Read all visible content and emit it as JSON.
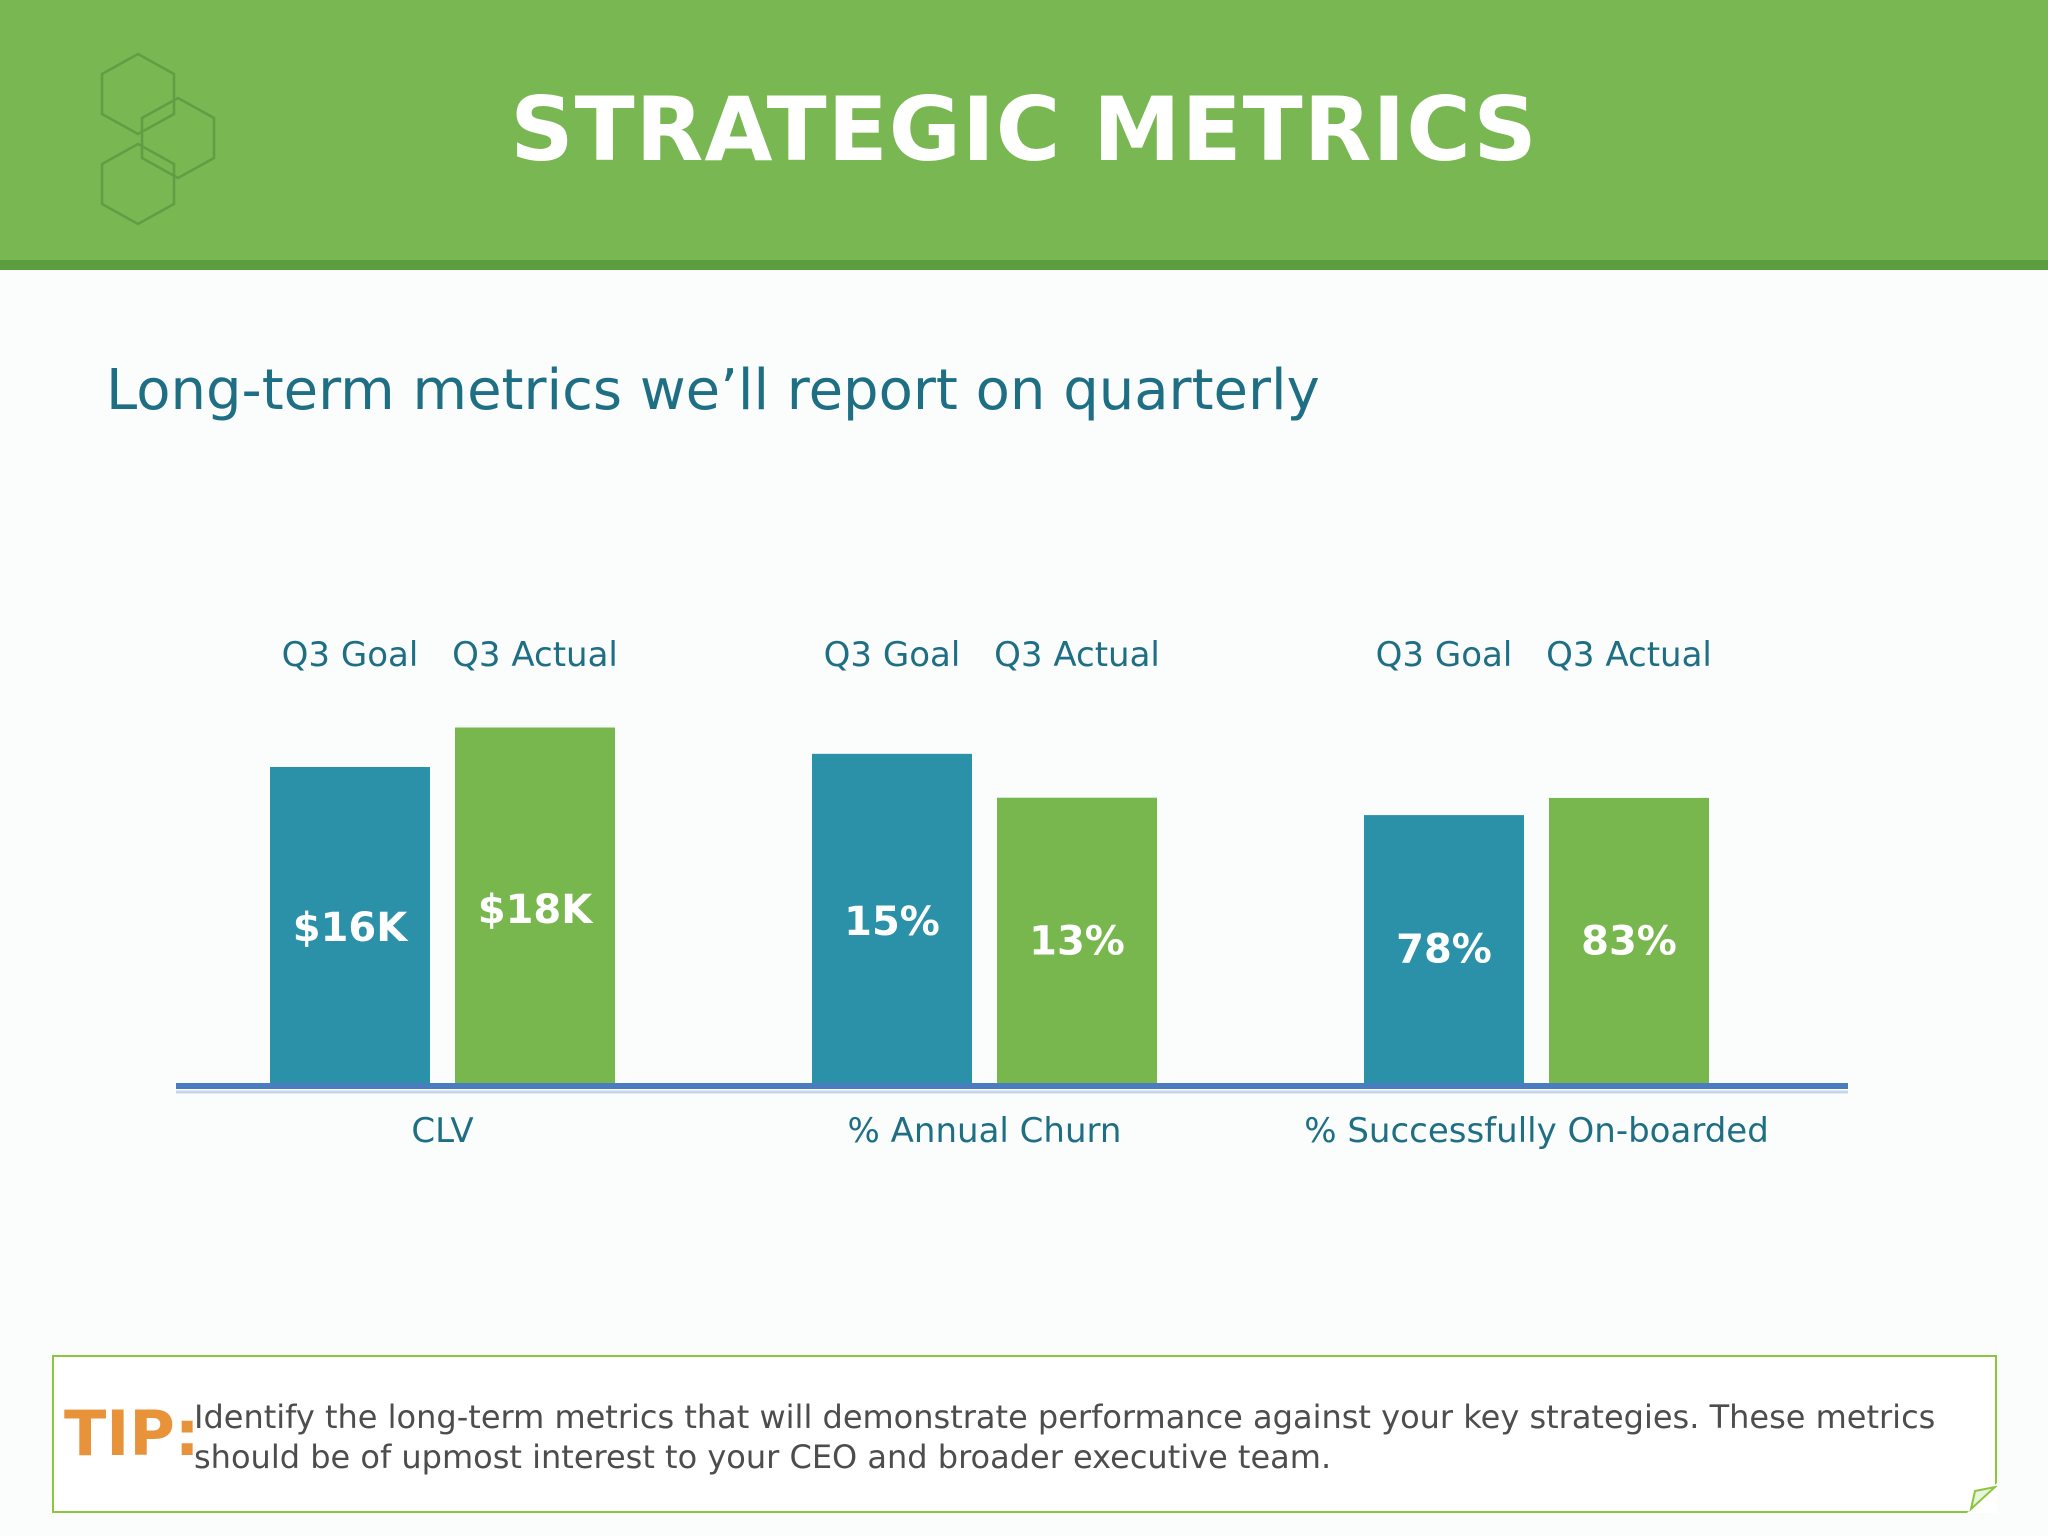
{
  "header": {
    "title": "STRATEGIC METRICS"
  },
  "subtitle": "Long-term metrics we’ll report on quarterly",
  "colors": {
    "header_green": "#79b752",
    "goal_bar": "#2b91a8",
    "actual_bar": "#78b74e",
    "axis": "#4a7cc0",
    "text_teal": "#1f6f84",
    "tip_orange": "#e8923a",
    "tip_border": "#8cc63f"
  },
  "chart_data": {
    "type": "bar",
    "categories": [
      "CLV",
      "% Annual Churn",
      "% Successfully On-boarded"
    ],
    "series": [
      {
        "name": "Q3 Goal",
        "values": [
          16,
          15,
          78
        ],
        "labels": [
          "$16K",
          "15%",
          "78%"
        ]
      },
      {
        "name": "Q3 Actual",
        "values": [
          18,
          13,
          83
        ],
        "labels": [
          "$18K",
          "13%",
          "83%"
        ]
      }
    ],
    "units": [
      "$K",
      "%",
      "%"
    ],
    "ylim": [
      [
        0,
        20
      ],
      [
        0,
        18
      ],
      [
        0,
        115
      ]
    ],
    "legend": "above each group"
  },
  "tip": {
    "label": "TIP:",
    "text": "Identify the long-term metrics that will demonstrate performance against your key strategies. These metrics should be of upmost interest to your CEO and broader executive team."
  }
}
